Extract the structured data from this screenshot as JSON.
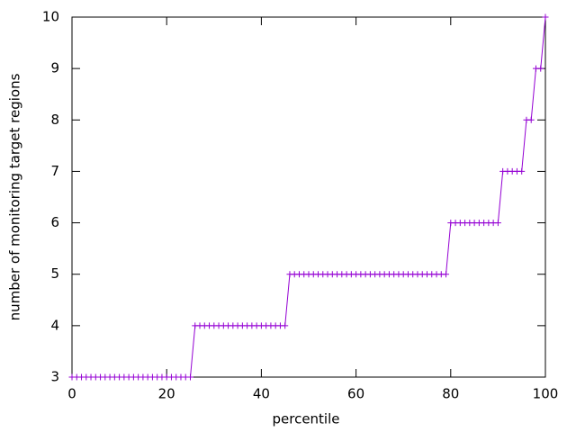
{
  "chart_data": {
    "type": "line",
    "xlabel": "percentile",
    "ylabel": "number of monitoring target regions",
    "x": [
      0,
      1,
      2,
      3,
      4,
      5,
      6,
      7,
      8,
      9,
      10,
      11,
      12,
      13,
      14,
      15,
      16,
      17,
      18,
      19,
      20,
      21,
      22,
      23,
      24,
      25,
      26,
      27,
      28,
      29,
      30,
      31,
      32,
      33,
      34,
      35,
      36,
      37,
      38,
      39,
      40,
      41,
      42,
      43,
      44,
      45,
      46,
      47,
      48,
      49,
      50,
      51,
      52,
      53,
      54,
      55,
      56,
      57,
      58,
      59,
      60,
      61,
      62,
      63,
      64,
      65,
      66,
      67,
      68,
      69,
      70,
      71,
      72,
      73,
      74,
      75,
      76,
      77,
      78,
      79,
      80,
      81,
      82,
      83,
      84,
      85,
      86,
      87,
      88,
      89,
      90,
      91,
      92,
      93,
      94,
      95,
      96,
      97,
      98,
      99,
      100
    ],
    "series": [
      {
        "name": null,
        "color": "#9400d3",
        "values": [
          3,
          3,
          3,
          3,
          3,
          3,
          3,
          3,
          3,
          3,
          3,
          3,
          3,
          3,
          3,
          3,
          3,
          3,
          3,
          3,
          3,
          3,
          3,
          3,
          3,
          3,
          4,
          4,
          4,
          4,
          4,
          4,
          4,
          4,
          4,
          4,
          4,
          4,
          4,
          4,
          4,
          4,
          4,
          4,
          4,
          4,
          5,
          5,
          5,
          5,
          5,
          5,
          5,
          5,
          5,
          5,
          5,
          5,
          5,
          5,
          5,
          5,
          5,
          5,
          5,
          5,
          5,
          5,
          5,
          5,
          5,
          5,
          5,
          5,
          5,
          5,
          5,
          5,
          5,
          5,
          6,
          6,
          6,
          6,
          6,
          6,
          6,
          6,
          6,
          6,
          6,
          7,
          7,
          7,
          7,
          7,
          8,
          8,
          9,
          9,
          10
        ]
      }
    ],
    "xlim": [
      0,
      100
    ],
    "xticks": [
      0,
      20,
      40,
      60,
      80,
      100
    ],
    "ylim": [
      3,
      10
    ],
    "yticks": [
      3,
      4,
      5,
      6,
      7,
      8,
      9,
      10
    ],
    "grid": false
  }
}
